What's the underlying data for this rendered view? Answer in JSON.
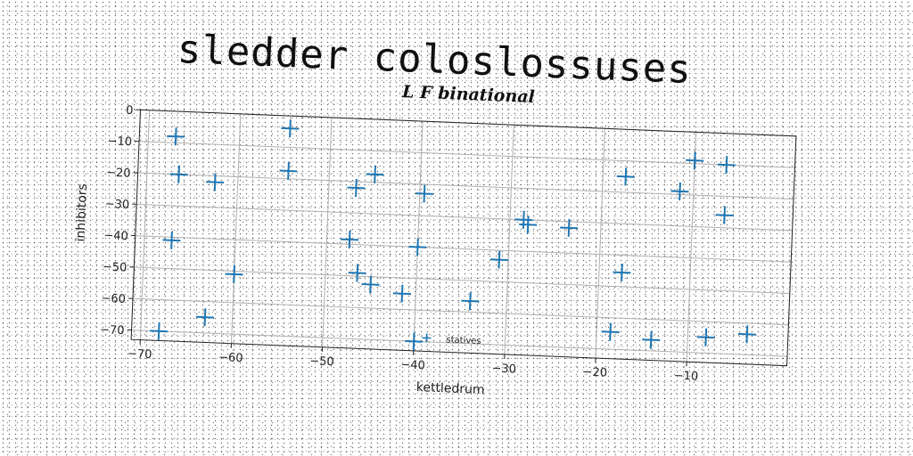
{
  "page_title": "sledder coloslossuses",
  "chart_data": {
    "type": "scatter",
    "title": "L F binational",
    "xlabel": "kettledrum",
    "ylabel": "inhibitors",
    "xlim": [
      -71,
      1
    ],
    "ylim": [
      -73,
      0
    ],
    "xticks": [
      -70,
      -60,
      -50,
      -40,
      -30,
      -20,
      -10
    ],
    "yticks": [
      0,
      -10,
      -20,
      -30,
      -40,
      -50,
      -60,
      -70
    ],
    "grid": true,
    "legend_position": "lower center",
    "marker": "+",
    "color": "#1f77b4",
    "series": [
      {
        "name": "statives",
        "points": [
          [
            -67,
            -8
          ],
          [
            -54.5,
            -4
          ],
          [
            -66.5,
            -20
          ],
          [
            -62.5,
            -22
          ],
          [
            -54.5,
            -17.5
          ],
          [
            -45,
            -17.5
          ],
          [
            -47,
            -22
          ],
          [
            -39.5,
            -23
          ],
          [
            -67,
            -41
          ],
          [
            -47.5,
            -38.5
          ],
          [
            -40,
            -40
          ],
          [
            -60,
            -51
          ],
          [
            -46.5,
            -49
          ],
          [
            -45,
            -52.5
          ],
          [
            -41.5,
            -55
          ],
          [
            -34,
            -56.5
          ],
          [
            -31,
            -43
          ],
          [
            -28.5,
            -30
          ],
          [
            -28,
            -31.5
          ],
          [
            -23.5,
            -32
          ],
          [
            -63,
            -65
          ],
          [
            -68,
            -70
          ],
          [
            -40,
            -70
          ],
          [
            -17.5,
            -15
          ],
          [
            -11.5,
            -19
          ],
          [
            -10,
            -9
          ],
          [
            -6.5,
            -10
          ],
          [
            -6.5,
            -26
          ],
          [
            -17.5,
            -45.5
          ],
          [
            -18.5,
            -64.5
          ],
          [
            -14,
            -66.5
          ],
          [
            -8,
            -65
          ],
          [
            -3.5,
            -63.5
          ]
        ]
      }
    ]
  }
}
